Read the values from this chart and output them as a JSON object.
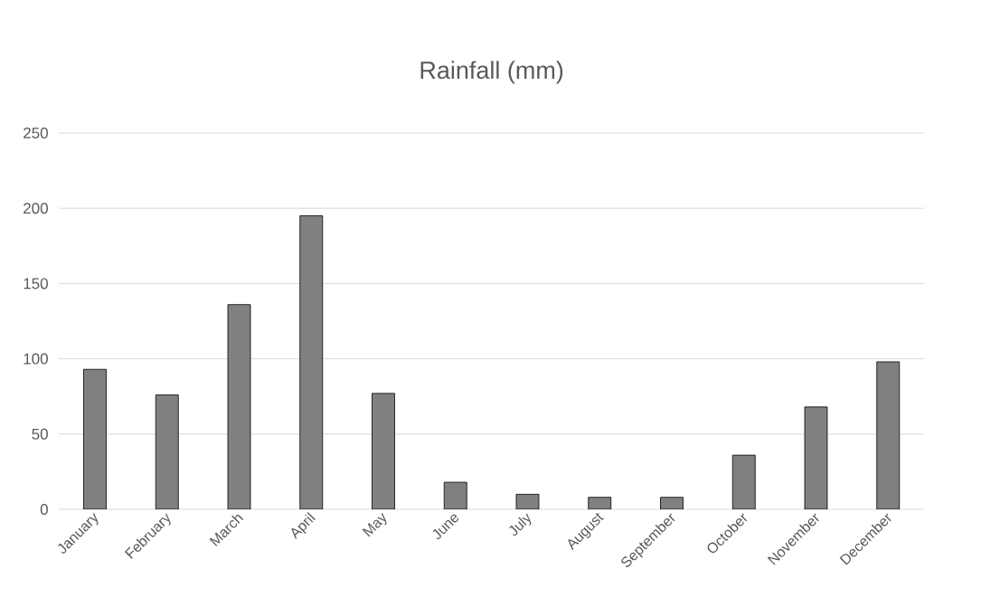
{
  "chart_data": {
    "type": "bar",
    "title": "Rainfall (mm)",
    "categories": [
      "January",
      "February",
      "March",
      "April",
      "May",
      "June",
      "July",
      "August",
      "September",
      "October",
      "November",
      "December"
    ],
    "values": [
      93,
      76,
      136,
      195,
      77,
      18,
      10,
      8,
      8,
      36,
      68,
      98
    ],
    "color": "#808080",
    "ylim": [
      0,
      250
    ],
    "yticks": [
      0,
      50,
      100,
      150,
      200,
      250
    ],
    "grid": "y"
  }
}
